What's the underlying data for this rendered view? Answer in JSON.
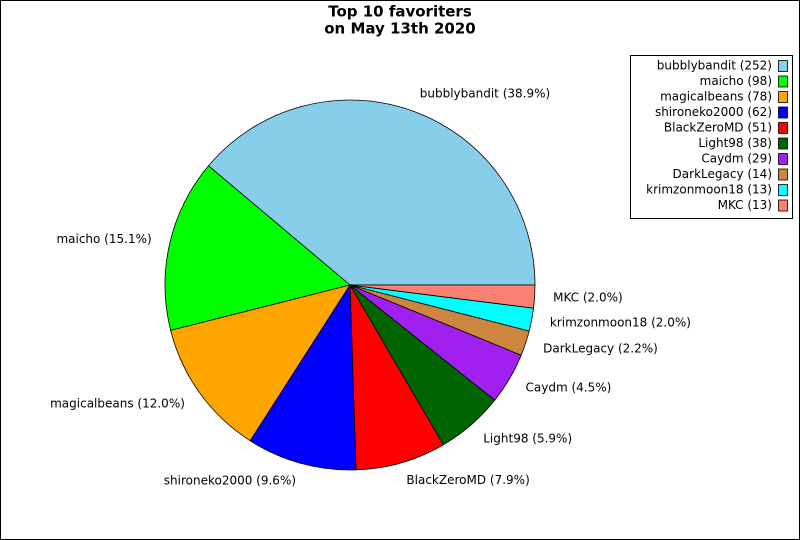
{
  "chart_data": {
    "type": "pie",
    "title": [
      "Top 10 favoriters",
      "on May 13th 2020"
    ],
    "categories": [
      "bubblybandit (252)",
      "maicho (98)",
      "magicalbeans (78)",
      "shironeko2000 (62)",
      "BlackZeroMD (51)",
      "Light98 (38)",
      "Caydm (29)",
      "DarkLegacy (14)",
      "krimzonmoon18 (13)",
      "MKC (13)"
    ],
    "values": [
      38.9,
      15.1,
      12.0,
      9.6,
      7.9,
      5.9,
      4.5,
      2.2,
      2.0,
      2.0
    ],
    "value_labels": [
      "bubblybandit (38.9%)",
      "maicho (15.1%)",
      "magicalbeans (12.0%)",
      "shironeko2000 (9.6%)",
      "BlackZeroMD (7.9%)",
      "Light98 (5.9%)",
      "Caydm (4.5%)",
      "DarkLegacy (2.2%)",
      "krimzonmoon18 (2.0%)",
      "MKC (2.0%)"
    ],
    "colors": [
      "#87ceeb",
      "#00ff00",
      "#ffa500",
      "#0000ff",
      "#ff0000",
      "#006400",
      "#a020f0",
      "#cd853f",
      "#00ffff",
      "#fa8072"
    ],
    "legend": "upper right"
  }
}
